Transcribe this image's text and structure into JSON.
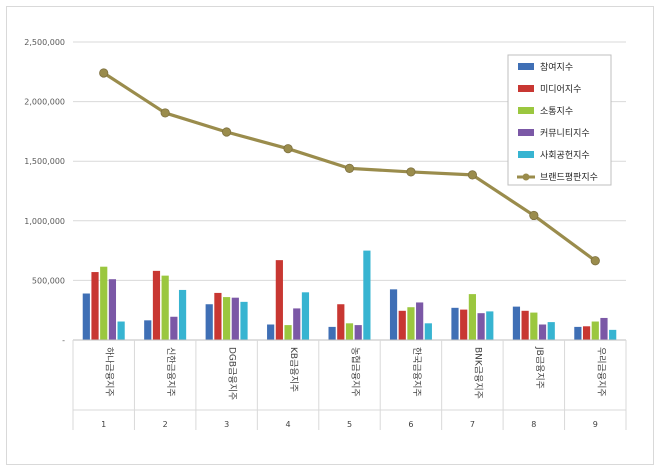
{
  "chart_data": {
    "type": "bar",
    "title": "",
    "xlabel": "",
    "ylabel": "",
    "ylim": [
      0,
      2500000
    ],
    "yticks": [
      0,
      500000,
      1000000,
      1500000,
      2000000,
      2500000
    ],
    "ytick_labels": [
      "-",
      "500,000",
      "1,000,000",
      "1,500,000",
      "2,000,000",
      "2,500,000"
    ],
    "grid": true,
    "legend_position": "top-right",
    "categories": [
      "하나금융지주",
      "신한금융지주",
      "DGB금융지주",
      "KB금융지주",
      "농협금융지주",
      "한국금융지주",
      "BNK금융지주",
      "JB금융지주",
      "우리금융지주"
    ],
    "indices": [
      "1",
      "2",
      "3",
      "4",
      "5",
      "6",
      "7",
      "8",
      "9"
    ],
    "series": [
      {
        "name": "참여지수",
        "color": "#3f6fb5",
        "values": [
          390000,
          165000,
          300000,
          130000,
          110000,
          425000,
          270000,
          280000,
          110000
        ]
      },
      {
        "name": "미디어지수",
        "color": "#c83732",
        "values": [
          570000,
          580000,
          395000,
          670000,
          300000,
          245000,
          255000,
          245000,
          115000
        ]
      },
      {
        "name": "소통지수",
        "color": "#9bc73f",
        "values": [
          615000,
          540000,
          360000,
          125000,
          140000,
          275000,
          385000,
          230000,
          155000
        ]
      },
      {
        "name": "커뮤니티지수",
        "color": "#7b58a6",
        "values": [
          510000,
          195000,
          355000,
          265000,
          125000,
          315000,
          225000,
          130000,
          185000
        ]
      },
      {
        "name": "사회공헌지수",
        "color": "#37b4d1",
        "values": [
          155000,
          420000,
          320000,
          400000,
          750000,
          140000,
          240000,
          150000,
          85000
        ]
      }
    ],
    "line_series": {
      "name": "브랜드평판지수",
      "color": "#9a8c4c",
      "values": [
        2240000,
        1905000,
        1745000,
        1605000,
        1440000,
        1410000,
        1385000,
        1045000,
        665000
      ]
    }
  }
}
